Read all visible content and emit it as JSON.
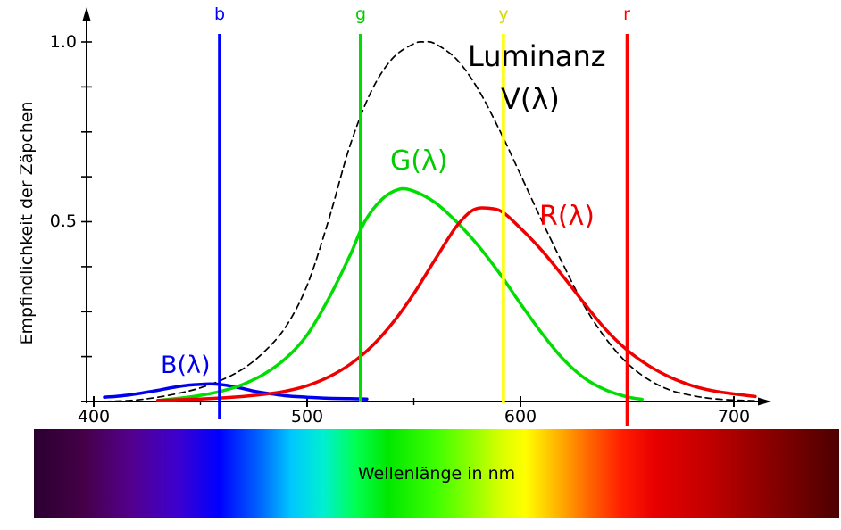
{
  "axes": {
    "x_tick_labels": [
      "400",
      "500",
      "600",
      "700"
    ],
    "y_tick_labels": [
      "1.0",
      "0.5"
    ],
    "x_minor_ticks": [
      450,
      550,
      650
    ],
    "y_tick_step": 0.125
  },
  "annotations": [
    {
      "text": "B(λ)",
      "color": "#0000ee"
    },
    {
      "text": "G(λ)",
      "color": "#00cc00"
    },
    {
      "text": "R(λ)",
      "color": "#ee0000"
    },
    {
      "text": "Luminanz",
      "color": "#000000"
    },
    {
      "text": "V(λ)",
      "color": "#000000"
    }
  ],
  "spectrum": {
    "stops": [
      "#2a0030 0%",
      "#440046 6%",
      "#54008c 12%",
      "#3c00d0 18%",
      "#0000ff 23%",
      "#0064ff 28%",
      "#00c8ff 32%",
      "#00f0d0 36%",
      "#00ff50 40%",
      "#00e800 44%",
      "#40ff00 50%",
      "#9cff00 55%",
      "#d8ff00 58%",
      "#ffff00 61%",
      "#ffb400 65%",
      "#ff6400 69%",
      "#ff1e00 73%",
      "#e80000 77%",
      "#c00000 84%",
      "#8c0000 91%",
      "#4c0000 100%"
    ]
  },
  "chart_data": {
    "type": "line",
    "title": "",
    "xlabel": "Wellenlänge in nm",
    "ylabel": "Empfindlichkeit der Zäpchen",
    "xlim": [
      395,
      715
    ],
    "ylim": [
      0,
      1.05
    ],
    "x_ticks": [
      400,
      500,
      600,
      700
    ],
    "y_ticks_labeled": [
      0.5,
      1.0
    ],
    "grid": false,
    "legend_position": "inline-annotations",
    "series": [
      {
        "name": "B(λ)",
        "color": "#0000ee",
        "style": "solid",
        "x": [
          405,
          410,
          415,
          420,
          425,
          430,
          435,
          440,
          445,
          450,
          455,
          460,
          465,
          470,
          475,
          480,
          490,
          500,
          510,
          520,
          528
        ],
        "y": [
          0.012,
          0.014,
          0.017,
          0.021,
          0.026,
          0.031,
          0.037,
          0.042,
          0.046,
          0.048,
          0.049,
          0.047,
          0.042,
          0.036,
          0.029,
          0.024,
          0.016,
          0.012,
          0.009,
          0.008,
          0.007
        ]
      },
      {
        "name": "G(λ)",
        "color": "#00dd00",
        "style": "solid",
        "x": [
          432,
          440,
          450,
          460,
          470,
          480,
          490,
          500,
          510,
          520,
          527,
          535,
          543,
          550,
          560,
          570,
          580,
          590,
          600,
          610,
          620,
          630,
          640,
          650,
          657
        ],
        "y": [
          0.004,
          0.009,
          0.017,
          0.029,
          0.048,
          0.077,
          0.12,
          0.185,
          0.285,
          0.405,
          0.5,
          0.562,
          0.59,
          0.585,
          0.553,
          0.5,
          0.435,
          0.358,
          0.272,
          0.19,
          0.118,
          0.065,
          0.032,
          0.013,
          0.006
        ]
      },
      {
        "name": "R(λ)",
        "color": "#ee0000",
        "style": "solid",
        "x": [
          430,
          440,
          450,
          460,
          470,
          480,
          490,
          500,
          510,
          520,
          530,
          540,
          550,
          560,
          570,
          578,
          586,
          592,
          600,
          610,
          620,
          630,
          640,
          650,
          660,
          670,
          680,
          690,
          700,
          710
        ],
        "y": [
          0.003,
          0.005,
          0.007,
          0.01,
          0.014,
          0.02,
          0.029,
          0.044,
          0.068,
          0.103,
          0.152,
          0.218,
          0.3,
          0.395,
          0.487,
          0.533,
          0.537,
          0.525,
          0.482,
          0.42,
          0.348,
          0.272,
          0.2,
          0.143,
          0.1,
          0.068,
          0.045,
          0.03,
          0.021,
          0.014
        ]
      },
      {
        "name": "Luminanz V(λ)",
        "color": "#000000",
        "style": "dashed",
        "x": [
          400,
          410,
          420,
          430,
          440,
          450,
          460,
          470,
          480,
          490,
          500,
          510,
          520,
          530,
          540,
          550,
          555,
          560,
          570,
          580,
          590,
          600,
          610,
          620,
          630,
          640,
          650,
          660,
          670,
          680,
          690,
          700,
          710
        ],
        "y": [
          0.0,
          0.001,
          0.004,
          0.012,
          0.023,
          0.038,
          0.06,
          0.091,
          0.139,
          0.208,
          0.323,
          0.503,
          0.71,
          0.862,
          0.954,
          0.995,
          1.0,
          0.995,
          0.952,
          0.87,
          0.757,
          0.631,
          0.503,
          0.381,
          0.265,
          0.175,
          0.107,
          0.061,
          0.032,
          0.017,
          0.008,
          0.004,
          0.002
        ]
      }
    ],
    "vlines": [
      {
        "label": "b",
        "x": 459,
        "color": "#0000ff"
      },
      {
        "label": "g",
        "x": 525,
        "color": "#00dd00"
      },
      {
        "label": "y",
        "x": 592,
        "color": "#ffff00"
      },
      {
        "label": "r",
        "x": 650,
        "color": "#ff0000"
      }
    ]
  }
}
